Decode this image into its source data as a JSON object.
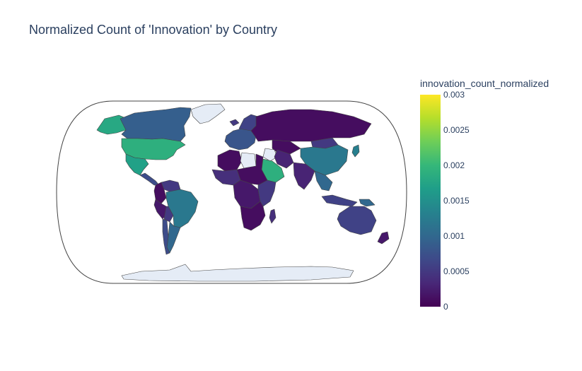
{
  "chart_data": {
    "type": "choropleth",
    "title": "Normalized Count of 'Innovation' by Country",
    "projection": "natural earth",
    "colorscale": "viridis",
    "colorbar": {
      "title": "innovation_count_normalized",
      "range": [
        0,
        0.003
      ],
      "tick_labels": [
        "0.003",
        "0.0025",
        "0.002",
        "0.0015",
        "0.001",
        "0.0005",
        "0"
      ],
      "tick_values": [
        0.003,
        0.0025,
        0.002,
        0.0015,
        0.001,
        0.0005,
        0
      ]
    },
    "no_data_color": "#e5ecf6",
    "colors": {
      "title": "#2a3f5f",
      "coastline": "#444444"
    },
    "regions": [
      {
        "name": "United States",
        "value": 0.0019
      },
      {
        "name": "Canada",
        "value": 0.0009
      },
      {
        "name": "Alaska",
        "value": 0.0018
      },
      {
        "name": "Mexico",
        "value": 0.0017
      },
      {
        "name": "Central America",
        "value": 0.0007
      },
      {
        "name": "Colombia",
        "value": 0.0001
      },
      {
        "name": "Venezuela",
        "value": 0.0005
      },
      {
        "name": "Brazil",
        "value": 0.0012
      },
      {
        "name": "Peru",
        "value": 0.0002
      },
      {
        "name": "Bolivia",
        "value": 0.0005
      },
      {
        "name": "Argentina",
        "value": 0.001
      },
      {
        "name": "Chile",
        "value": 0.0007
      },
      {
        "name": "Greenland",
        "value": null
      },
      {
        "name": "Iceland",
        "value": 0.0005
      },
      {
        "name": "Western Europe",
        "value": 0.0008
      },
      {
        "name": "Scandinavia",
        "value": 0.0006
      },
      {
        "name": "Russia",
        "value": 0.0001
      },
      {
        "name": "North Africa",
        "value": 0.0001
      },
      {
        "name": "Libya",
        "value": null
      },
      {
        "name": "Sahel",
        "value": 0.0001
      },
      {
        "name": "West Africa",
        "value": 0.0004
      },
      {
        "name": "Central Africa",
        "value": 0.0002
      },
      {
        "name": "East Africa",
        "value": 0.0005
      },
      {
        "name": "Southern Africa",
        "value": 0.0001
      },
      {
        "name": "Madagascar",
        "value": 0.0004
      },
      {
        "name": "Saudi Arabia",
        "value": 0.0019
      },
      {
        "name": "Iraq",
        "value": null
      },
      {
        "name": "Iran",
        "value": 0.0003
      },
      {
        "name": "Central Asia",
        "value": 0.0001
      },
      {
        "name": "India",
        "value": 0.0003
      },
      {
        "name": "China",
        "value": 0.0012
      },
      {
        "name": "Mongolia",
        "value": 0.0005
      },
      {
        "name": "Southeast Asia",
        "value": 0.001
      },
      {
        "name": "Japan",
        "value": 0.0013
      },
      {
        "name": "Indonesia",
        "value": 0.0006
      },
      {
        "name": "Papua New Guinea",
        "value": 0.001
      },
      {
        "name": "Australia",
        "value": 0.0006
      },
      {
        "name": "New Zealand",
        "value": 0.0002
      },
      {
        "name": "Antarctica",
        "value": null
      }
    ]
  }
}
